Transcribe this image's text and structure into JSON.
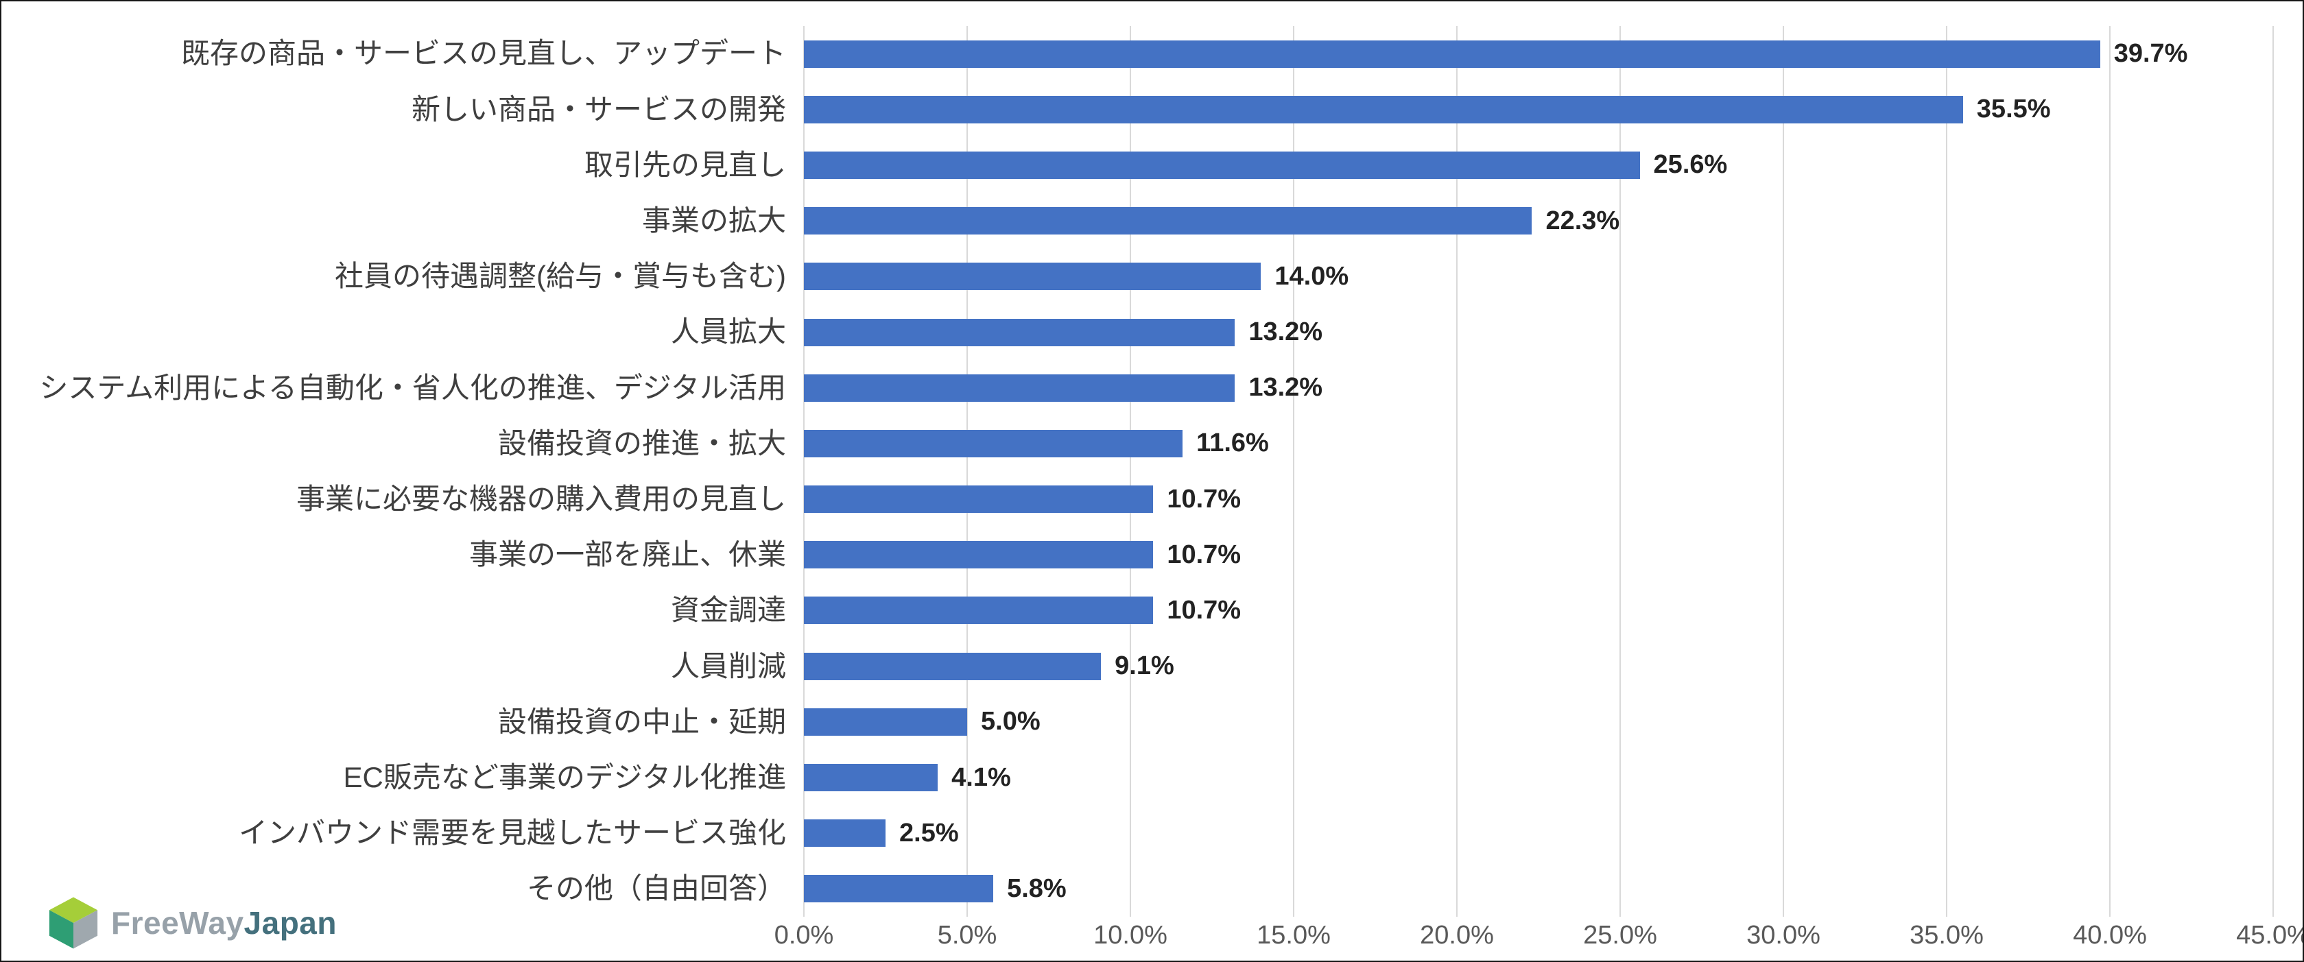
{
  "chart_data": {
    "type": "bar",
    "orientation": "horizontal",
    "title": "",
    "xlabel": "",
    "ylabel": "",
    "xlim": [
      0,
      45
    ],
    "grid": "vertical",
    "legend": "none",
    "bar_color": "#4472C4",
    "gridline_color": "#D9D9D9",
    "categories": [
      "既存の商品・サービスの見直し、アップデート",
      "新しい商品・サービスの開発",
      "取引先の見直し",
      "事業の拡大",
      "社員の待遇調整(給与・賞与も含む)",
      "人員拡大",
      "システム利用による自動化・省人化の推進、デジタル活用",
      "設備投資の推進・拡大",
      "事業に必要な機器の購入費用の見直し",
      "事業の一部を廃止、休業",
      "資金調達",
      "人員削減",
      "設備投資の中止・延期",
      "EC販売など事業のデジタル化推進",
      "インバウンド需要を見越したサービス強化",
      "その他（自由回答）"
    ],
    "values": [
      39.7,
      35.5,
      25.6,
      22.3,
      14.0,
      13.2,
      13.2,
      11.6,
      10.7,
      10.7,
      10.7,
      9.1,
      5.0,
      4.1,
      2.5,
      5.8
    ],
    "value_labels": [
      "39.7%",
      "35.5%",
      "25.6%",
      "22.3%",
      "14.0%",
      "13.2%",
      "13.2%",
      "11.6%",
      "10.7%",
      "10.7%",
      "10.7%",
      "9.1%",
      "5.0%",
      "4.1%",
      "2.5%",
      "5.8%"
    ],
    "x_tick_values": [
      0,
      5,
      10,
      15,
      20,
      25,
      30,
      35,
      40,
      45
    ],
    "x_tick_labels": [
      "0.0%",
      "5.0%",
      "10.0%",
      "15.0%",
      "20.0%",
      "25.0%",
      "30.0%",
      "35.0%",
      "40.0%",
      "45.0%"
    ]
  },
  "logo": {
    "brand_light": "FreeWay",
    "brand_dark": "Japan"
  }
}
